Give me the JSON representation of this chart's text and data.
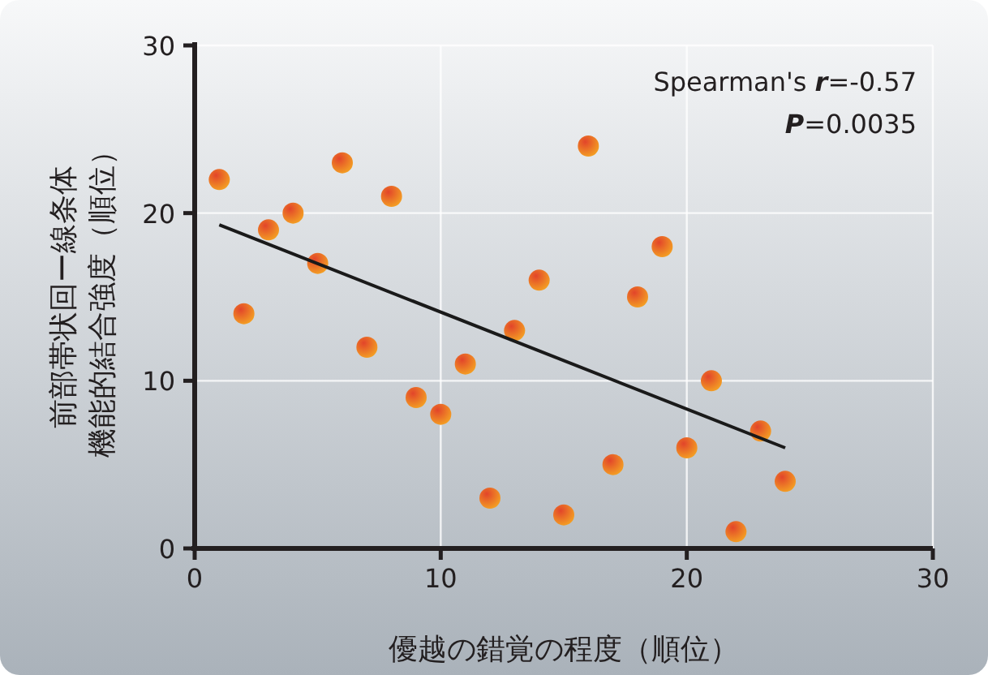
{
  "chart_data": {
    "type": "scatter",
    "xlabel": "優越の錯覚の程度（順位）",
    "ylabel": "前部帯状回ー線条体機能的結合強度（順位）",
    "xlim": [
      0,
      30
    ],
    "ylim": [
      0,
      30
    ],
    "xticks": [
      0,
      10,
      20,
      30
    ],
    "yticks": [
      0,
      10,
      20,
      30
    ],
    "grid": true,
    "annotations": [
      "Spearman's *r*=-0.57",
      "**P**=0.0035"
    ],
    "series": [
      {
        "marker": "circle",
        "color": "#e2452a",
        "x": [
          1,
          2,
          3,
          4,
          5,
          6,
          7,
          8,
          9,
          10,
          11,
          12,
          13,
          14,
          15,
          16,
          17,
          18,
          19,
          20,
          21,
          22,
          23,
          24
        ],
        "values": [
          22,
          14,
          19,
          20,
          17,
          23,
          12,
          21,
          9,
          8,
          11,
          3,
          13,
          16,
          2,
          24,
          5,
          15,
          18,
          6,
          10,
          1,
          7,
          4
        ]
      },
      {
        "type": "line",
        "color": "#1a1a1a",
        "x": [
          1,
          24
        ],
        "values": [
          19.3,
          6.0
        ]
      }
    ]
  }
}
